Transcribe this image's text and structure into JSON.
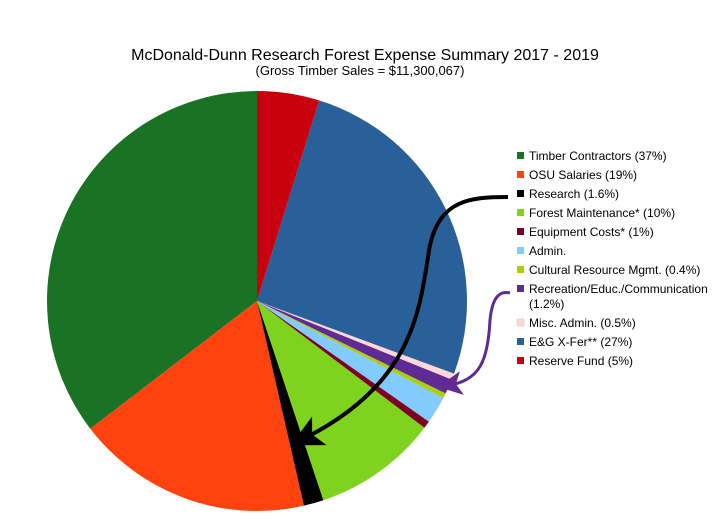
{
  "chart_data": {
    "type": "pie",
    "title": "McDonald-Dunn Research Forest Expense Summary 2017 - 2019",
    "subtitle": "(Gross Timber Sales = $11,300,067)",
    "legend_position": "right",
    "slices": [
      {
        "label": "Timber Contractors (37%)",
        "value": 37,
        "color": "#1a7325"
      },
      {
        "label": "OSU Salaries (19%)",
        "value": 19,
        "color": "#ff420e"
      },
      {
        "label": "Research (1.6%)",
        "value": 1.6,
        "color": "#000000"
      },
      {
        "label": "Forest Maintenance* (10%)",
        "value": 10,
        "color": "#7fd31e"
      },
      {
        "label": "Equipment Costs* (1%)",
        "value": 0.6,
        "color": "#7e0021"
      },
      {
        "label": "Admin.",
        "value": 2.2,
        "color": "#83caff"
      },
      {
        "label": "Cultural Resource Mgmt. (0.4%)",
        "value": 0.4,
        "color": "#aecf00"
      },
      {
        "label": "Recreation/Educ./Communication (1.2%)",
        "value": 1.2,
        "color": "#5e2a93"
      },
      {
        "label": "Misc. Admin. (0.5%)",
        "value": 0.5,
        "color": "#ffd7d7"
      },
      {
        "label": "E&G X-Fer** (27%)",
        "value": 27,
        "color": "#2a6099"
      },
      {
        "label": "Reserve Fund (5%)",
        "value": 5,
        "color": "#c9000e"
      }
    ]
  }
}
